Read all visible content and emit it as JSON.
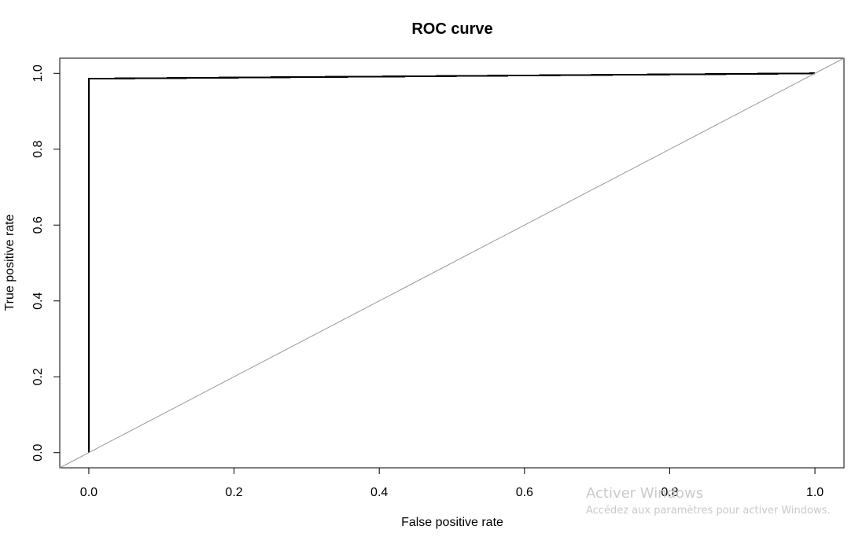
{
  "chart_data": {
    "type": "line",
    "title": "ROC curve",
    "xlabel": "False positive rate",
    "ylabel": "True positive rate",
    "xlim": [
      -0.04,
      1.04
    ],
    "ylim": [
      -0.04,
      1.04
    ],
    "x_ticks": [
      0.0,
      0.2,
      0.4,
      0.6,
      0.8,
      1.0
    ],
    "y_ticks": [
      0.0,
      0.2,
      0.4,
      0.6,
      0.8,
      1.0
    ],
    "x_tick_labels": [
      "0.0",
      "0.2",
      "0.4",
      "0.6",
      "0.8",
      "1.0"
    ],
    "y_tick_labels": [
      "0.0",
      "0.2",
      "0.4",
      "0.6",
      "0.8",
      "1.0"
    ],
    "grid": false,
    "series": [
      {
        "color": "#000000",
        "style": "step",
        "x": [
          0.0,
          0.0,
          0.143,
          0.286,
          0.429,
          0.571,
          0.714,
          0.857,
          1.0
        ],
        "y": [
          0.0,
          0.986,
          0.988,
          0.99,
          0.992,
          0.994,
          0.996,
          0.998,
          1.0
        ]
      },
      {
        "color": "#999999",
        "style": "diagonal",
        "x": [
          -0.04,
          1.04
        ],
        "y": [
          -0.04,
          1.04
        ]
      }
    ]
  },
  "watermark": {
    "line1": "Activer Windows",
    "line2": "Accédez aux paramètres pour activer Windows."
  }
}
